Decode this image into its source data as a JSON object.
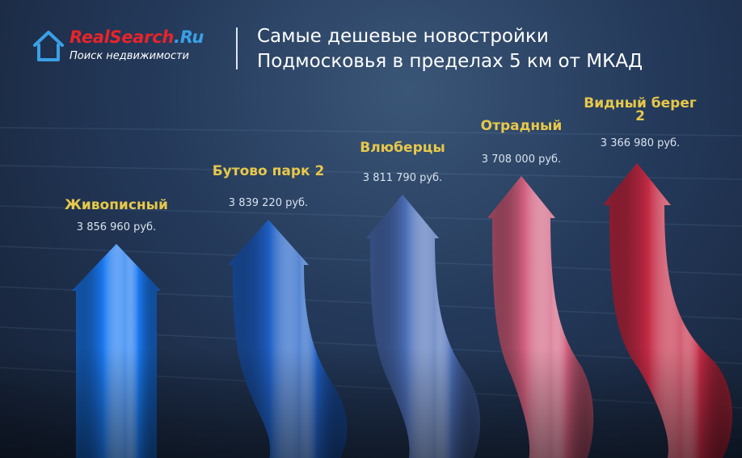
{
  "logo": {
    "brand_main": "RealSearch",
    "brand_dot": ".Ru",
    "tagline": "Поиск недвижимости",
    "icon": "house-icon"
  },
  "title": "Самые дешевые новостройки Подмосковья в пределах 5 км от МКАД",
  "colors": {
    "background": "#1c2d48",
    "label_gold": "#e7c84a",
    "brand_red": "#e8242b",
    "brand_blue": "#3aa0e6",
    "arrows": [
      "#1a78f0",
      "#1f5fc4",
      "#4c6fb8",
      "#d2607f",
      "#c42a45"
    ]
  },
  "chart_data": {
    "type": "bar",
    "title": "Самые дешевые новостройки Подмосковья в пределах 5 км от МКАД",
    "categories": [
      "Живописный",
      "Бутово парк 2",
      "Влюберцы",
      "Отрадный",
      "Видный берег 2"
    ],
    "values": [
      3856960,
      3839220,
      3811790,
      3708000,
      3366980
    ],
    "value_labels": [
      "3 856 960 руб.",
      "3 839 220 руб.",
      "3 811 790 руб.",
      "3 708 000 руб.",
      "3 366 980 руб."
    ],
    "unit": "руб.",
    "xlabel": "",
    "ylabel": "",
    "grid": false,
    "legend": "none"
  }
}
